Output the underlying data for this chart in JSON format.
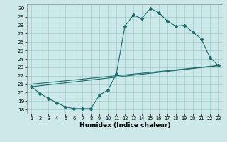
{
  "xlabel": "Humidex (Indice chaleur)",
  "xlim": [
    0.5,
    23.5
  ],
  "ylim": [
    17.5,
    30.5
  ],
  "xticks": [
    1,
    2,
    3,
    4,
    5,
    6,
    7,
    8,
    9,
    10,
    11,
    12,
    13,
    14,
    15,
    16,
    17,
    18,
    19,
    20,
    21,
    22,
    23
  ],
  "yticks": [
    18,
    19,
    20,
    21,
    22,
    23,
    24,
    25,
    26,
    27,
    28,
    29,
    30
  ],
  "bg_color": "#cde8e8",
  "grid_color": "#a0cccc",
  "line_color": "#1a6b6b",
  "curve1_x": [
    1,
    2,
    3,
    4,
    5,
    6,
    7,
    8,
    9,
    10,
    11,
    12,
    13,
    14,
    15,
    16,
    17,
    18,
    19,
    20,
    21,
    22,
    23
  ],
  "curve1_y": [
    20.7,
    19.9,
    19.3,
    18.8,
    18.3,
    18.1,
    18.1,
    18.1,
    19.7,
    20.3,
    22.2,
    27.9,
    29.2,
    28.8,
    30.0,
    29.5,
    28.5,
    27.9,
    28.0,
    27.2,
    26.4,
    24.2,
    23.2
  ],
  "line1_x": [
    1,
    23
  ],
  "line1_y": [
    20.7,
    23.2
  ],
  "line2_x": [
    1,
    23
  ],
  "line2_y": [
    21.0,
    23.2
  ]
}
